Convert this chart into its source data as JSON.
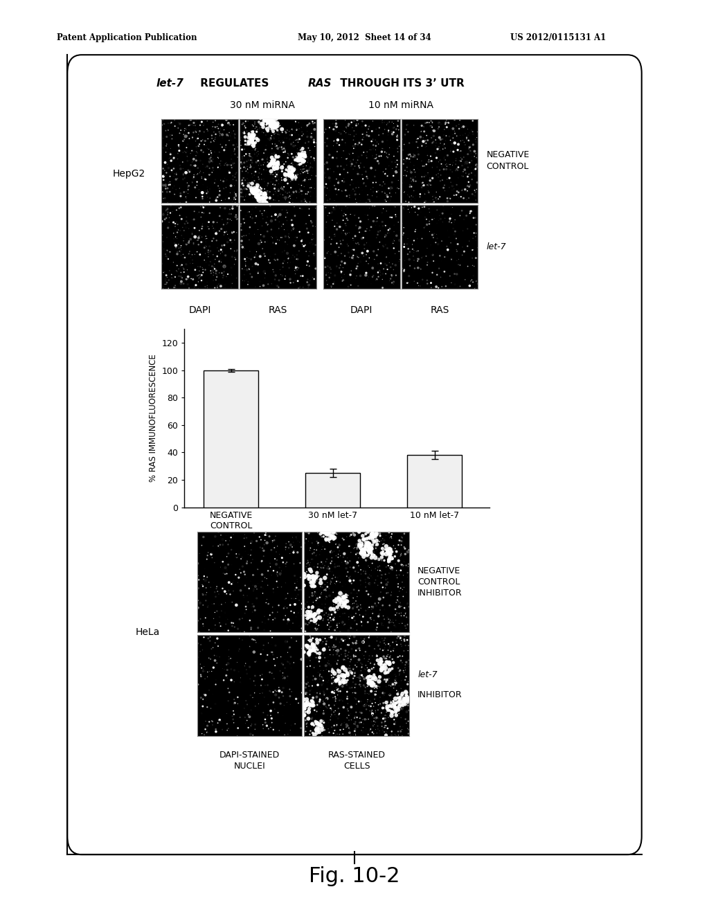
{
  "page_header_left": "Patent Application Publication",
  "page_header_mid": "May 10, 2012  Sheet 14 of 34",
  "page_header_right": "US 2012/0115131 A1",
  "figure_label": "Fig. 10-2",
  "title_italic": "let-7",
  "title_normal": " REGULATES ",
  "title_italic2": "RAS",
  "title_normal2": " THROUGH ITS 3’ UTR",
  "top_label_30nM": "30 nM miRNA",
  "top_label_10nM": "10 nM miRNA",
  "hepg2_label": "HepG2",
  "neg_control_label": "NEGATIVE\nCONTROL",
  "let7_label": "let-7",
  "col_labels_top": [
    "DAPI",
    "RAS",
    "DAPI",
    "RAS"
  ],
  "bar_categories": [
    "NEGATIVE\nCONTROL",
    "30 nM let-7",
    "10 nM let-7"
  ],
  "bar_values": [
    100,
    25,
    38
  ],
  "bar_errors": [
    1,
    3,
    3
  ],
  "bar_color": "#f0f0f0",
  "bar_edge_color": "#000000",
  "ylabel": "% RAS IMMUNOFLUORESCENCE",
  "ylim": [
    0,
    130
  ],
  "yticks": [
    0,
    20,
    40,
    60,
    80,
    100,
    120
  ],
  "hela_label": "HeLa",
  "bottom_right_label1": "NEGATIVE\nCONTROL\nINHIBITOR",
  "bottom_right_label2_italic": "let-7",
  "bottom_right_label2_normal": "\nINHIBITOR",
  "bottom_col_label1": "DAPI-STAINED\nNUCLEI",
  "bottom_col_label2": "RAS-STAINED\nCELLS",
  "background_color": "#ffffff",
  "text_color": "#000000"
}
